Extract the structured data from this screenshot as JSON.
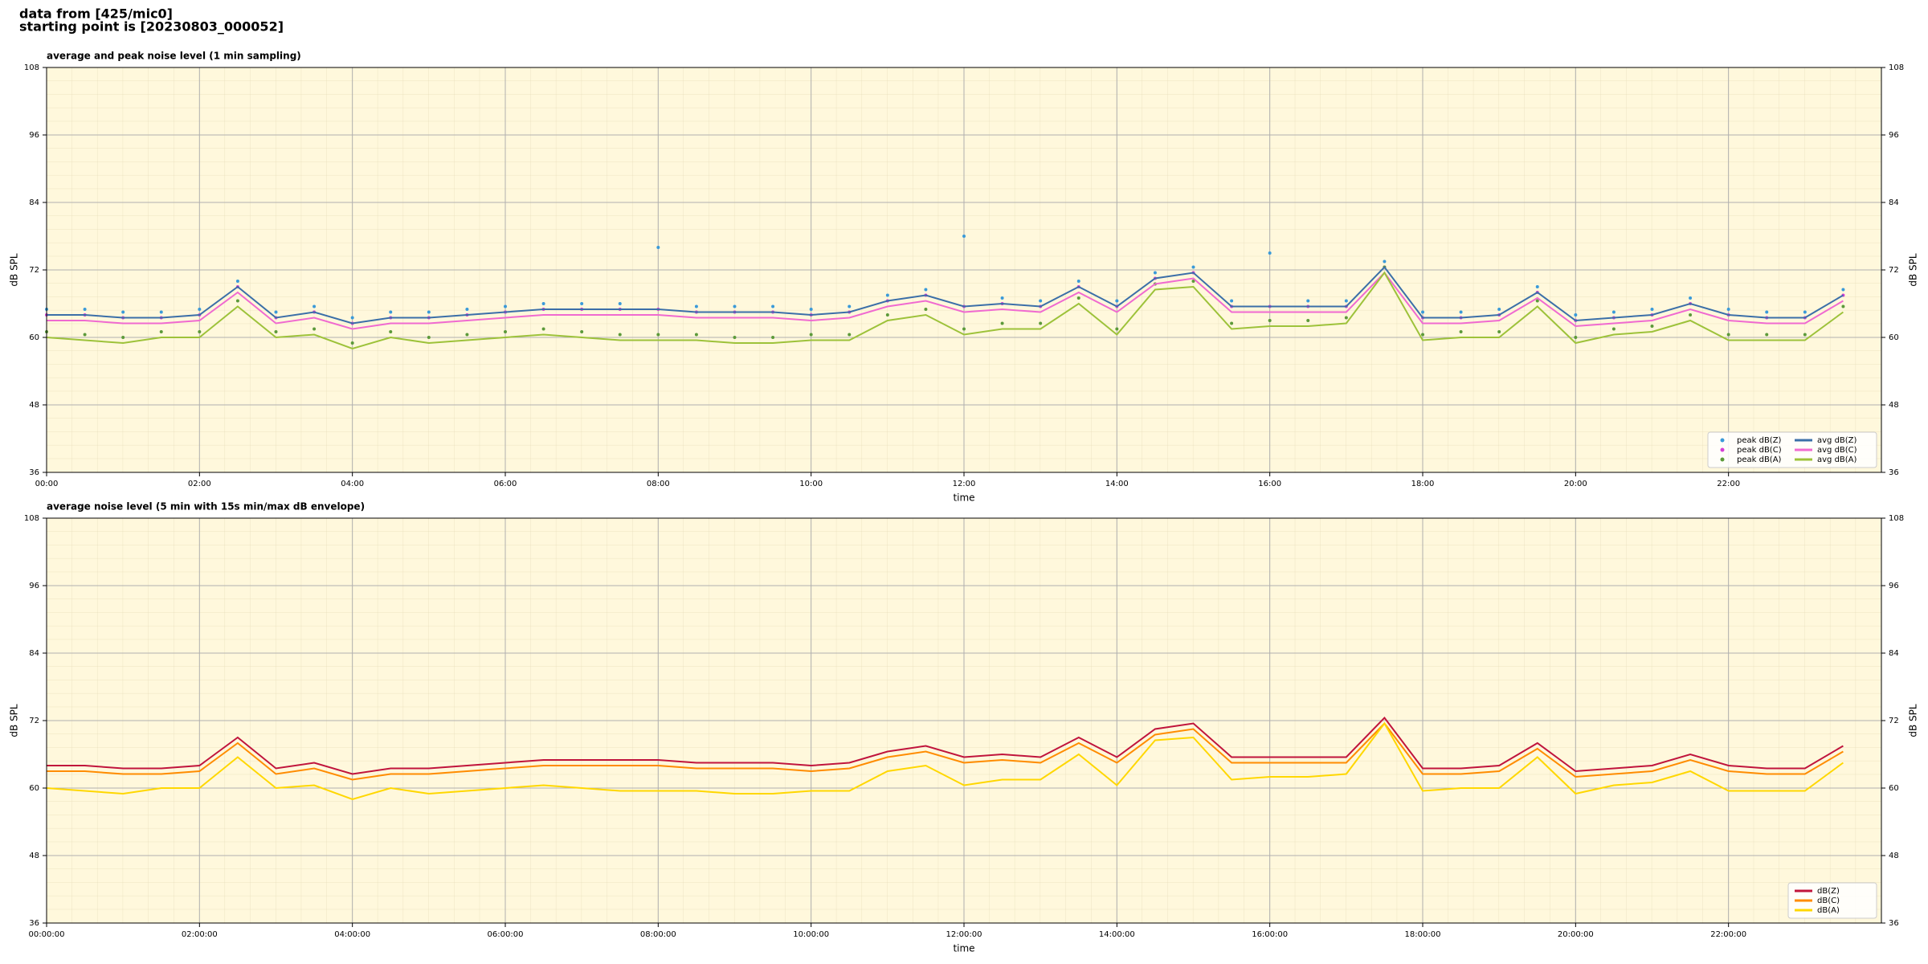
{
  "header": {
    "lines": [
      "data from [425/mic0]",
      "starting point is [20230803_000052]"
    ]
  },
  "chart_data": [
    {
      "type": "line",
      "title": "average and peak noise level (1 min sampling)",
      "xlabel": "time",
      "ylabel": "dB SPL",
      "x": [
        0,
        0.5,
        1,
        1.5,
        2,
        2.5,
        3,
        3.5,
        4,
        4.5,
        5,
        5.5,
        6,
        6.5,
        7,
        7.5,
        8,
        8.5,
        9,
        9.5,
        10,
        10.5,
        11,
        11.5,
        12,
        12.5,
        13,
        13.5,
        14,
        14.5,
        15,
        15.5,
        16,
        16.5,
        17,
        17.5,
        18,
        18.5,
        19,
        19.5,
        20,
        20.5,
        21,
        21.5,
        22,
        22.5,
        23,
        23.5
      ],
      "xlim": [
        0,
        24
      ],
      "xticks": [
        {
          "value": 0,
          "label": "00:00"
        },
        {
          "value": 2,
          "label": "02:00"
        },
        {
          "value": 4,
          "label": "04:00"
        },
        {
          "value": 6,
          "label": "06:00"
        },
        {
          "value": 8,
          "label": "08:00"
        },
        {
          "value": 10,
          "label": "10:00"
        },
        {
          "value": 12,
          "label": "12:00"
        },
        {
          "value": 14,
          "label": "14:00"
        },
        {
          "value": 16,
          "label": "16:00"
        },
        {
          "value": 18,
          "label": "18:00"
        },
        {
          "value": 20,
          "label": "20:00"
        },
        {
          "value": 22,
          "label": "22:00"
        }
      ],
      "ylim": [
        36,
        108
      ],
      "yticks": [
        36,
        48,
        60,
        72,
        84,
        96,
        108
      ],
      "grid": true,
      "legend": "lower right",
      "legend_columns": 2,
      "series": [
        {
          "name": "peak dB(Z)",
          "kind": "scatter",
          "color": "#3a9ad9",
          "values": [
            65,
            65,
            64.5,
            64.5,
            65,
            70,
            64.5,
            65.5,
            63.5,
            64.5,
            64.5,
            65,
            65.5,
            66,
            66,
            66,
            76,
            65.5,
            65.5,
            65.5,
            65,
            65.5,
            67.5,
            68.5,
            78,
            67,
            66.5,
            70,
            66.5,
            71.5,
            72.5,
            66.5,
            75,
            66.5,
            66.5,
            73.5,
            64.5,
            64.5,
            65,
            69,
            64,
            64.5,
            65,
            67,
            65,
            64.5,
            64.5,
            68.5
          ]
        },
        {
          "name": "peak dB(C)",
          "kind": "scatter",
          "color": "#d63fd6",
          "values": [
            64,
            64,
            63.5,
            63.5,
            64,
            69,
            63.5,
            64.5,
            62.5,
            63.5,
            63.5,
            64,
            64.5,
            65,
            65,
            65,
            65,
            64.5,
            64.5,
            64.5,
            64,
            64.5,
            66.5,
            67.5,
            65.5,
            66,
            65.5,
            69,
            65.5,
            70.5,
            71.5,
            65.5,
            65.5,
            65.5,
            65.5,
            72.5,
            63.5,
            63.5,
            64,
            68,
            63,
            63.5,
            64,
            66,
            64,
            63.5,
            63.5,
            67.5
          ]
        },
        {
          "name": "peak dB(A)",
          "kind": "scatter",
          "color": "#5c9a3a",
          "values": [
            61,
            60.5,
            60,
            61,
            61,
            66.5,
            61,
            61.5,
            59,
            61,
            60,
            60.5,
            61,
            61.5,
            61,
            60.5,
            60.5,
            60.5,
            60,
            60,
            60.5,
            60.5,
            64,
            65,
            61.5,
            62.5,
            62.5,
            67,
            61.5,
            69.5,
            70,
            62.5,
            63,
            63,
            63.5,
            72.5,
            60.5,
            61,
            61,
            66.5,
            60,
            61.5,
            62,
            64,
            60.5,
            60.5,
            60.5,
            65.5
          ]
        },
        {
          "name": "avg dB(Z)",
          "kind": "line",
          "color": "#3b6fa8",
          "values": [
            64,
            64,
            63.5,
            63.5,
            64,
            69,
            63.5,
            64.5,
            62.5,
            63.5,
            63.5,
            64,
            64.5,
            65,
            65,
            65,
            65,
            64.5,
            64.5,
            64.5,
            64,
            64.5,
            66.5,
            67.5,
            65.5,
            66,
            65.5,
            69,
            65.5,
            70.5,
            71.5,
            65.5,
            65.5,
            65.5,
            65.5,
            72.5,
            63.5,
            63.5,
            64,
            68,
            63,
            63.5,
            64,
            66,
            64,
            63.5,
            63.5,
            67.5
          ]
        },
        {
          "name": "avg dB(C)",
          "kind": "line",
          "color": "#f06ad0",
          "values": [
            63,
            63,
            62.5,
            62.5,
            63,
            68,
            62.5,
            63.5,
            61.5,
            62.5,
            62.5,
            63,
            63.5,
            64,
            64,
            64,
            64,
            63.5,
            63.5,
            63.5,
            63,
            63.5,
            65.5,
            66.5,
            64.5,
            65,
            64.5,
            68,
            64.5,
            69.5,
            70.5,
            64.5,
            64.5,
            64.5,
            64.5,
            71.5,
            62.5,
            62.5,
            63,
            67,
            62,
            62.5,
            63,
            65,
            63,
            62.5,
            62.5,
            66.5
          ]
        },
        {
          "name": "avg dB(A)",
          "kind": "line",
          "color": "#9dc23a",
          "values": [
            60,
            59.5,
            59,
            60,
            60,
            65.5,
            60,
            60.5,
            58,
            60,
            59,
            59.5,
            60,
            60.5,
            60,
            59.5,
            59.5,
            59.5,
            59,
            59,
            59.5,
            59.5,
            63,
            64,
            60.5,
            61.5,
            61.5,
            66,
            60.5,
            68.5,
            69,
            61.5,
            62,
            62,
            62.5,
            71.5,
            59.5,
            60,
            60,
            65.5,
            59,
            60.5,
            61,
            63,
            59.5,
            59.5,
            59.5,
            64.5
          ]
        }
      ]
    },
    {
      "type": "line",
      "title": "average noise level (5 min with 15s min/max dB envelope)",
      "xlabel": "time",
      "ylabel": "dB SPL",
      "x": [
        0,
        0.5,
        1,
        1.5,
        2,
        2.5,
        3,
        3.5,
        4,
        4.5,
        5,
        5.5,
        6,
        6.5,
        7,
        7.5,
        8,
        8.5,
        9,
        9.5,
        10,
        10.5,
        11,
        11.5,
        12,
        12.5,
        13,
        13.5,
        14,
        14.5,
        15,
        15.5,
        16,
        16.5,
        17,
        17.5,
        18,
        18.5,
        19,
        19.5,
        20,
        20.5,
        21,
        21.5,
        22,
        22.5,
        23,
        23.5
      ],
      "xlim": [
        0,
        24
      ],
      "xticks": [
        {
          "value": 0,
          "label": "00:00:00"
        },
        {
          "value": 2,
          "label": "02:00:00"
        },
        {
          "value": 4,
          "label": "04:00:00"
        },
        {
          "value": 6,
          "label": "06:00:00"
        },
        {
          "value": 8,
          "label": "08:00:00"
        },
        {
          "value": 10,
          "label": "10:00:00"
        },
        {
          "value": 12,
          "label": "12:00:00"
        },
        {
          "value": 14,
          "label": "14:00:00"
        },
        {
          "value": 16,
          "label": "16:00:00"
        },
        {
          "value": 18,
          "label": "18:00:00"
        },
        {
          "value": 20,
          "label": "20:00:00"
        },
        {
          "value": 22,
          "label": "22:00:00"
        }
      ],
      "ylim": [
        36,
        108
      ],
      "yticks": [
        36,
        48,
        60,
        72,
        84,
        96,
        108
      ],
      "grid": true,
      "legend": "lower right",
      "legend_columns": 1,
      "series": [
        {
          "name": "dB(Z)",
          "kind": "line",
          "color": "#c0143c",
          "values": [
            64,
            64,
            63.5,
            63.5,
            64,
            69,
            63.5,
            64.5,
            62.5,
            63.5,
            63.5,
            64,
            64.5,
            65,
            65,
            65,
            65,
            64.5,
            64.5,
            64.5,
            64,
            64.5,
            66.5,
            67.5,
            65.5,
            66,
            65.5,
            69,
            65.5,
            70.5,
            71.5,
            65.5,
            65.5,
            65.5,
            65.5,
            72.5,
            63.5,
            63.5,
            64,
            68,
            63,
            63.5,
            64,
            66,
            64,
            63.5,
            63.5,
            67.5
          ]
        },
        {
          "name": "dB(C)",
          "kind": "line",
          "color": "#ff8c00",
          "values": [
            63,
            63,
            62.5,
            62.5,
            63,
            68,
            62.5,
            63.5,
            61.5,
            62.5,
            62.5,
            63,
            63.5,
            64,
            64,
            64,
            64,
            63.5,
            63.5,
            63.5,
            63,
            63.5,
            65.5,
            66.5,
            64.5,
            65,
            64.5,
            68,
            64.5,
            69.5,
            70.5,
            64.5,
            64.5,
            64.5,
            64.5,
            71.5,
            62.5,
            62.5,
            63,
            67,
            62,
            62.5,
            63,
            65,
            63,
            62.5,
            62.5,
            66.5
          ]
        },
        {
          "name": "dB(A)",
          "kind": "line",
          "color": "#ffd700",
          "values": [
            60,
            59.5,
            59,
            60,
            60,
            65.5,
            60,
            60.5,
            58,
            60,
            59,
            59.5,
            60,
            60.5,
            60,
            59.5,
            59.5,
            59.5,
            59,
            59,
            59.5,
            59.5,
            63,
            64,
            60.5,
            61.5,
            61.5,
            66,
            60.5,
            68.5,
            69,
            61.5,
            62,
            62,
            62.5,
            71.5,
            59.5,
            60,
            60,
            65.5,
            59,
            60.5,
            61,
            63,
            59.5,
            59.5,
            59.5,
            64.5
          ]
        }
      ]
    }
  ]
}
